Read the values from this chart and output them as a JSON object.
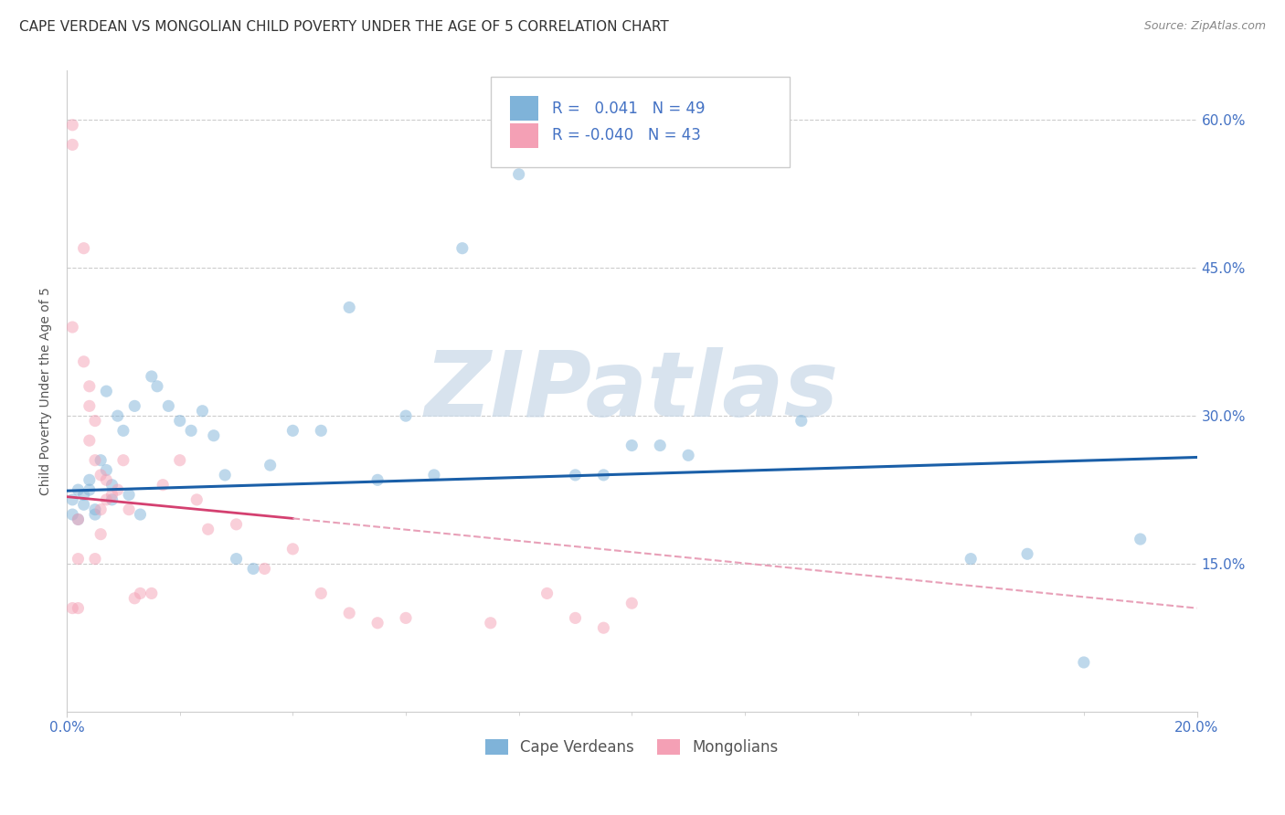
{
  "title": "CAPE VERDEAN VS MONGOLIAN CHILD POVERTY UNDER THE AGE OF 5 CORRELATION CHART",
  "source": "Source: ZipAtlas.com",
  "ylabel": "Child Poverty Under the Age of 5",
  "watermark": "ZIPatlas",
  "legend_entries": [
    {
      "label": "Cape Verdeans",
      "R": " 0.041",
      "N": "49",
      "color": "#a8c4e0"
    },
    {
      "label": "Mongolians",
      "R": "-0.040",
      "N": "43",
      "color": "#f0b8c8"
    }
  ],
  "ytick_labels": [
    "60.0%",
    "45.0%",
    "30.0%",
    "15.0%"
  ],
  "ytick_values": [
    0.6,
    0.45,
    0.3,
    0.15
  ],
  "xlim": [
    0.0,
    0.2
  ],
  "ylim": [
    0.0,
    0.65
  ],
  "blue_line": {
    "x0": 0.0,
    "y0": 0.224,
    "x1": 0.2,
    "y1": 0.258
  },
  "pink_line_solid": {
    "x0": 0.0,
    "y0": 0.218,
    "x1": 0.04,
    "y1": 0.196
  },
  "pink_line_dash": {
    "x0": 0.04,
    "y0": 0.196,
    "x1": 0.2,
    "y1": 0.105
  },
  "cape_verdean_x": [
    0.001,
    0.001,
    0.002,
    0.002,
    0.003,
    0.003,
    0.004,
    0.004,
    0.005,
    0.005,
    0.006,
    0.007,
    0.007,
    0.008,
    0.008,
    0.009,
    0.01,
    0.011,
    0.012,
    0.013,
    0.015,
    0.016,
    0.018,
    0.02,
    0.022,
    0.024,
    0.026,
    0.028,
    0.03,
    0.033,
    0.036,
    0.04,
    0.045,
    0.05,
    0.055,
    0.06,
    0.065,
    0.07,
    0.08,
    0.09,
    0.095,
    0.1,
    0.11,
    0.13,
    0.16,
    0.17,
    0.18,
    0.19,
    0.105
  ],
  "cape_verdean_y": [
    0.215,
    0.2,
    0.225,
    0.195,
    0.22,
    0.21,
    0.235,
    0.225,
    0.205,
    0.2,
    0.255,
    0.325,
    0.245,
    0.23,
    0.215,
    0.3,
    0.285,
    0.22,
    0.31,
    0.2,
    0.34,
    0.33,
    0.31,
    0.295,
    0.285,
    0.305,
    0.28,
    0.24,
    0.155,
    0.145,
    0.25,
    0.285,
    0.285,
    0.41,
    0.235,
    0.3,
    0.24,
    0.47,
    0.545,
    0.24,
    0.24,
    0.27,
    0.26,
    0.295,
    0.155,
    0.16,
    0.05,
    0.175,
    0.27
  ],
  "mongolian_x": [
    0.001,
    0.001,
    0.002,
    0.002,
    0.003,
    0.003,
    0.004,
    0.004,
    0.005,
    0.005,
    0.006,
    0.006,
    0.007,
    0.007,
    0.008,
    0.009,
    0.01,
    0.011,
    0.012,
    0.013,
    0.015,
    0.017,
    0.02,
    0.023,
    0.025,
    0.03,
    0.035,
    0.04,
    0.045,
    0.05,
    0.055,
    0.06,
    0.075,
    0.085,
    0.09,
    0.095,
    0.1,
    0.001,
    0.001,
    0.002,
    0.004,
    0.005,
    0.006
  ],
  "mongolian_y": [
    0.595,
    0.575,
    0.195,
    0.155,
    0.47,
    0.355,
    0.33,
    0.31,
    0.295,
    0.255,
    0.24,
    0.205,
    0.235,
    0.215,
    0.22,
    0.225,
    0.255,
    0.205,
    0.115,
    0.12,
    0.12,
    0.23,
    0.255,
    0.215,
    0.185,
    0.19,
    0.145,
    0.165,
    0.12,
    0.1,
    0.09,
    0.095,
    0.09,
    0.12,
    0.095,
    0.085,
    0.11,
    0.39,
    0.105,
    0.105,
    0.275,
    0.155,
    0.18
  ],
  "blue_color": "#7fb3d9",
  "pink_color": "#f4a0b5",
  "blue_line_color": "#1a5fa8",
  "pink_line_solid_color": "#d44070",
  "pink_line_dash_color": "#e8a0b8",
  "grid_color": "#cccccc",
  "bg_color": "#ffffff",
  "title_fontsize": 11,
  "axis_label_fontsize": 10,
  "tick_fontsize": 11,
  "legend_fontsize": 12,
  "marker_size": 90,
  "marker_alpha": 0.5,
  "watermark_color": "#c8d8e8",
  "watermark_fontsize": 72
}
